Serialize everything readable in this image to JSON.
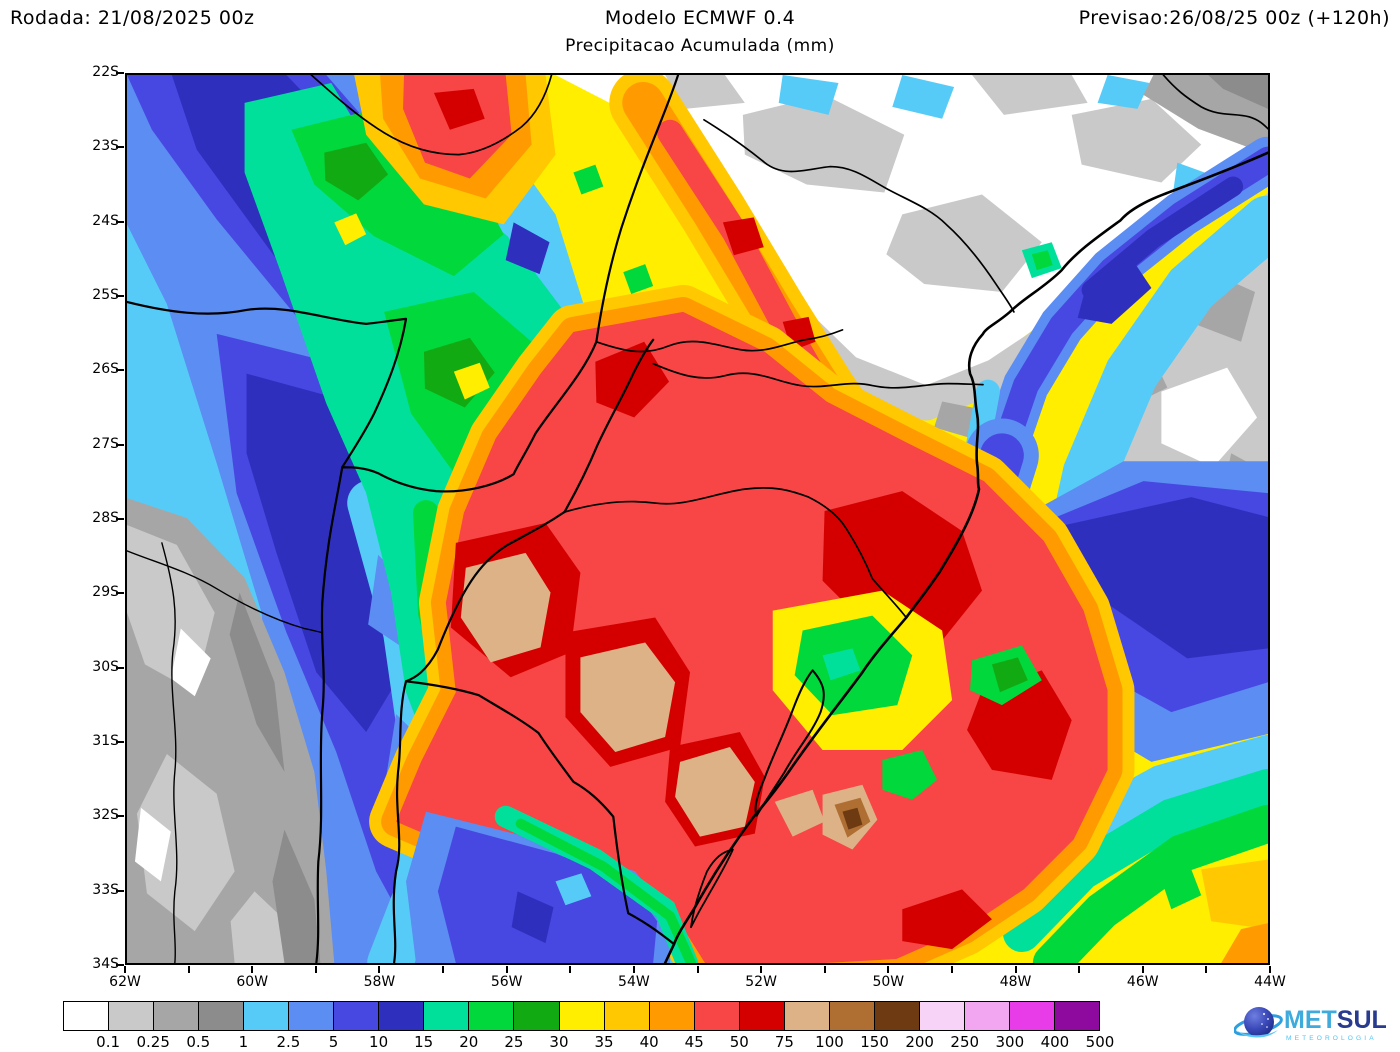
{
  "header": {
    "run_label": "Rodada: 21/08/2025 00z",
    "model": "Modelo ECMWF 0.4",
    "subtitle": "Precipitacao Acumulada (mm)",
    "forecast": "Previsao:26/08/25 00z (+120h)"
  },
  "axes": {
    "lat": [
      "22S",
      "23S",
      "24S",
      "25S",
      "26S",
      "27S",
      "28S",
      "29S",
      "30S",
      "31S",
      "32S",
      "33S",
      "34S"
    ],
    "lon": [
      "62W",
      "60W",
      "58W",
      "56W",
      "54W",
      "52W",
      "50W",
      "48W",
      "46W",
      "44W"
    ],
    "lon_minor_ticks": 19
  },
  "colorbar": {
    "units": "mm",
    "thresholds": [
      "0.1",
      "0.25",
      "0.5",
      "1",
      "2.5",
      "5",
      "10",
      "15",
      "20",
      "25",
      "30",
      "35",
      "40",
      "45",
      "50",
      "75",
      "100",
      "150",
      "200",
      "250",
      "300",
      "400",
      "500"
    ],
    "colors": [
      "#FFFFFF",
      "#C9C9C9",
      "#A6A6A6",
      "#8C8C8C",
      "#57CBF8",
      "#5B8DF2",
      "#4747E2",
      "#2F2FBE",
      "#00E09B",
      "#00D83C",
      "#12AA12",
      "#FFEE00",
      "#FFC800",
      "#FF9B00",
      "#F84545",
      "#D40000",
      "#DDB287",
      "#B06F32",
      "#6E3A12",
      "#F8D3F8",
      "#F2A6F2",
      "#E83CE8",
      "#8E0A9E"
    ]
  },
  "logo": {
    "brand_light": "MET",
    "brand_dark": "SUL",
    "tagline": "METEOROLOGIA",
    "accent_light": "#3FAADC",
    "accent_dark": "#283B8F"
  }
}
